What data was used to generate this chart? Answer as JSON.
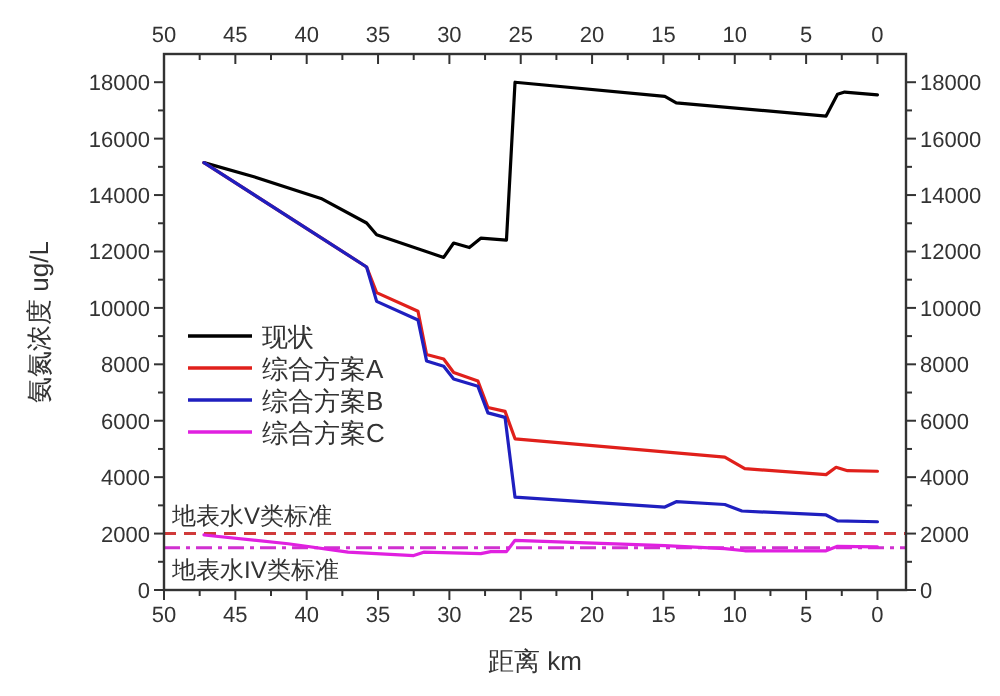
{
  "chart_data": {
    "type": "line",
    "xlabel": "距离 km",
    "ylabel": "氨氮浓度 ug/L",
    "xlim": [
      50,
      -2
    ],
    "ylim": [
      0,
      19000
    ],
    "x2lim": [
      50,
      -2
    ],
    "y2lim": [
      0,
      19000
    ],
    "xticks": [
      50,
      {
        "value": 47.5,
        "label": null
      },
      45,
      {
        "value": 42.5,
        "label": null
      },
      40,
      {
        "value": 37.5,
        "label": null
      },
      35,
      {
        "value": 32.5,
        "label": null
      },
      30,
      {
        "value": 27.5,
        "label": null
      },
      25,
      {
        "value": 22.5,
        "label": null
      },
      20,
      {
        "value": 17.5,
        "label": null
      },
      15,
      {
        "value": 12.5,
        "label": null
      },
      10,
      {
        "value": 7.5,
        "label": null
      },
      5,
      {
        "value": 2.5,
        "label": null
      },
      0
    ],
    "x2ticks": [
      50,
      {
        "value": 47.5,
        "label": null
      },
      45,
      {
        "value": 42.5,
        "label": null
      },
      40,
      {
        "value": 37.5,
        "label": null
      },
      35,
      {
        "value": 32.5,
        "label": null
      },
      30,
      {
        "value": 27.5,
        "label": null
      },
      25,
      {
        "value": 22.5,
        "label": null
      },
      20,
      {
        "value": 17.5,
        "label": null
      },
      15,
      {
        "value": 12.5,
        "label": null
      },
      10,
      {
        "value": 7.5,
        "label": null
      },
      5,
      {
        "value": 2.5,
        "label": null
      },
      0
    ],
    "yticks": [
      0,
      {
        "value": 1000,
        "label": null
      },
      2000,
      {
        "value": 3000,
        "label": null
      },
      4000,
      {
        "value": 5000,
        "label": null
      },
      6000,
      {
        "value": 7000,
        "label": null
      },
      8000,
      {
        "value": 9000,
        "label": null
      },
      10000,
      {
        "value": 11000,
        "label": null
      },
      12000,
      {
        "value": 13000,
        "label": null
      },
      14000,
      {
        "value": 15000,
        "label": null
      },
      16000,
      {
        "value": 17000,
        "label": null
      },
      18000
    ],
    "y2ticks": [
      0,
      {
        "value": 1000,
        "label": null
      },
      2000,
      {
        "value": 3000,
        "label": null
      },
      4000,
      {
        "value": 5000,
        "label": null
      },
      6000,
      {
        "value": 7000,
        "label": null
      },
      8000,
      {
        "value": 9000,
        "label": null
      },
      10000,
      {
        "value": 11000,
        "label": null
      },
      12000,
      {
        "value": 13000,
        "label": null
      },
      14000,
      {
        "value": 15000,
        "label": null
      },
      16000,
      {
        "value": 17000,
        "label": null
      },
      18000
    ],
    "series": [
      {
        "name": "现状",
        "color": "#000000",
        "x": [
          47.2,
          43.7,
          39.0,
          35.8,
          35.1,
          30.4,
          29.7,
          28.6,
          27.8,
          26.0,
          25.4,
          14.9,
          14.1,
          3.6,
          2.8,
          2.3,
          0
        ],
        "values": [
          15150,
          14650,
          13880,
          13010,
          12590,
          11790,
          12300,
          12140,
          12470,
          12400,
          18000,
          17500,
          17270,
          16800,
          17570,
          17650,
          17550
        ]
      },
      {
        "name": "综合方案A",
        "color": "#e0201b",
        "x": [
          47.2,
          35.8,
          35.1,
          32.2,
          31.6,
          30.4,
          29.7,
          28.0,
          27.3,
          26.1,
          25.4,
          10.7,
          9.3,
          3.6,
          2.9,
          2.1,
          0
        ],
        "values": [
          15150,
          11450,
          10540,
          9880,
          8350,
          8190,
          7710,
          7410,
          6470,
          6330,
          5360,
          4710,
          4300,
          4090,
          4350,
          4230,
          4210
        ]
      },
      {
        "name": "综合方案B",
        "color": "#1f1fbf",
        "x": [
          47.2,
          35.8,
          35.1,
          32.2,
          31.6,
          30.4,
          29.7,
          28.0,
          27.3,
          26.1,
          25.4,
          14.9,
          14.1,
          10.7,
          9.5,
          3.6,
          2.8,
          0
        ],
        "values": [
          15150,
          11450,
          10230,
          9570,
          8120,
          7930,
          7480,
          7220,
          6280,
          6120,
          3290,
          2940,
          3130,
          3030,
          2800,
          2660,
          2450,
          2420
        ]
      },
      {
        "name": "综合方案C",
        "color": "#e020e0",
        "x": [
          47.2,
          41.3,
          37.1,
          32.5,
          31.8,
          27.8,
          27.1,
          26.0,
          25.4,
          14.9,
          10.7,
          9.3,
          3.6,
          2.8,
          0
        ],
        "values": [
          1950,
          1640,
          1340,
          1220,
          1340,
          1290,
          1360,
          1360,
          1760,
          1570,
          1470,
          1390,
          1390,
          1550,
          1530
        ]
      }
    ],
    "ref_lines": [
      {
        "axis": "y",
        "value": 2000,
        "label": "地表水V类标准",
        "color": "#d03a3a",
        "line_style": "dashed"
      },
      {
        "axis": "y",
        "value": 1500,
        "label": "地表水IV类标准",
        "color": "#d030d0",
        "line_style": "dashdot"
      }
    ],
    "legend": "left"
  }
}
